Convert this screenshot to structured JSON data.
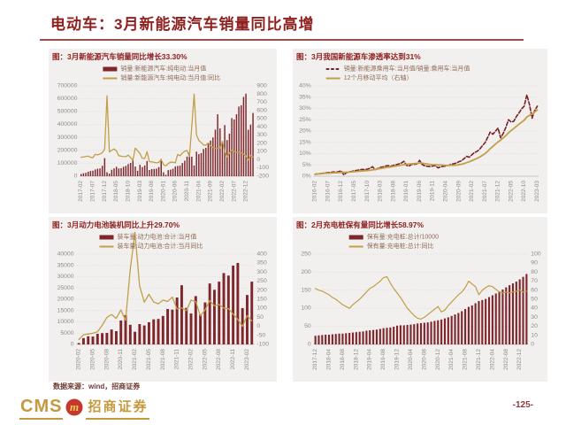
{
  "page": {
    "title": "电动车：3月新能源汽车销量同比高增",
    "source_note": "数据来源：wind，招商证券",
    "page_number": "-125-",
    "logo": {
      "cms": "CMS",
      "brand": "招商证券"
    }
  },
  "colors": {
    "title_red": "#8e2020",
    "bar_maroon": "#7f252c",
    "line_gold": "#c19f48",
    "logo_gold": "#c49a3e",
    "logo_badge_red": "#c5392c",
    "chart_bg": "#f2f0ee",
    "axis_text": "#8c8c8c"
  },
  "chart_data": [
    {
      "type": "bar",
      "title": "图：3月新能源汽车销量同比增长33.30%",
      "tick_every": 5,
      "legend_x_offset": 26,
      "x_ticks": [
        "2017-02",
        "2017-07",
        "2017-12",
        "2018-05",
        "2018-10",
        "2019-03",
        "2019-08",
        "2020-01",
        "2020-06",
        "2020-11",
        "2021-04",
        "2021-09",
        "2022-02",
        "2022-07",
        "2022-12"
      ],
      "left_axis": {
        "min": 0,
        "max": 700000,
        "step": 100000,
        "suffix": ""
      },
      "right_axis": {
        "min": -200,
        "max": 900,
        "step": 100,
        "suffix": ""
      },
      "series": [
        {
          "name": "销量:新能源汽车:纯电动:当月值",
          "kind": "bar",
          "axis": "left",
          "color": "#7f252c",
          "values": [
            17000,
            23000,
            26000,
            35000,
            40000,
            43000,
            52000,
            58000,
            60000,
            81000,
            140000,
            31000,
            20000,
            50000,
            60000,
            73000,
            60000,
            62000,
            73000,
            80000,
            94000,
            103000,
            130000,
            75000,
            42000,
            88000,
            71000,
            83000,
            118000,
            48000,
            55000,
            56000,
            59000,
            71000,
            133000,
            30000,
            11000,
            47000,
            51000,
            58000,
            75000,
            79000,
            82000,
            102000,
            120000,
            152000,
            184000,
            151000,
            83000,
            190000,
            171000,
            179000,
            211000,
            220000,
            250000,
            276000,
            300000,
            361000,
            480000,
            370000,
            270000,
            396000,
            280000,
            330000,
            450000,
            440000,
            480000,
            540000,
            550000,
            615000,
            640000,
            360000,
            400000,
            490000
          ]
        },
        {
          "name": "销量:新能源汽车:纯电动:当月值:同比",
          "kind": "line",
          "axis": "right",
          "color": "#c19f48",
          "width": 1.3,
          "values": [
            30,
            35,
            40,
            45,
            30,
            26,
            67,
            60,
            70,
            87,
            130,
            780,
            95,
            117,
            131,
            109,
            50,
            44,
            40,
            38,
            57,
            27,
            -7,
            142,
            110,
            76,
            18,
            14,
            97,
            -23,
            -25,
            -30,
            -37,
            -31,
            2,
            -60,
            -74,
            -47,
            -28,
            -30,
            -36,
            65,
            49,
            82,
            103,
            114,
            38,
            403,
            800,
            304,
            235,
            209,
            181,
            178,
            205,
            171,
            150,
            138,
            139,
            145,
            225,
            108,
            35,
            84,
            113,
            100,
            92,
            96,
            83,
            70,
            45,
            -3,
            53,
            33
          ]
        }
      ]
    },
    {
      "type": "line",
      "title": "图：3月我国新能源车渗透率达到31%",
      "tick_every": 5,
      "legend_x_offset": 14,
      "x_ticks": [
        "2016-02",
        "2016-07",
        "2016-12",
        "2017-05",
        "2017-10",
        "2018-03",
        "2018-08",
        "2019-01",
        "2019-06",
        "2019-11",
        "2020-04",
        "2020-09",
        "2021-02",
        "2021-07",
        "2021-12",
        "2022-05",
        "2022-10",
        "2023-03"
      ],
      "left_axis": {
        "min": 0,
        "max": 40,
        "step": 5,
        "suffix": "%"
      },
      "series": [
        {
          "name": "销量:新能源乘用车:当月值/销量:乘用车:当月值",
          "kind": "line",
          "axis": "left",
          "color": "#7a1f24",
          "dash": true,
          "width": 1.6,
          "values": [
            0.8,
            1.0,
            1.2,
            1.3,
            1.5,
            1.6,
            1.7,
            1.9,
            1.8,
            2.0,
            2.4,
            0.6,
            1.5,
            1.9,
            2.1,
            2.4,
            2.6,
            2.8,
            3.0,
            2.9,
            3.1,
            3.5,
            4.2,
            2.9,
            3.4,
            3.9,
            4.1,
            4.5,
            4.7,
            4.4,
            4.8,
            5.1,
            5.4,
            5.8,
            6.6,
            4.8,
            4.5,
            5.3,
            5.2,
            5.5,
            7.0,
            5.2,
            4.6,
            4.4,
            4.3,
            4.5,
            4.7,
            3.7,
            4.1,
            4.4,
            4.5,
            4.8,
            5.2,
            5.5,
            5.8,
            6.4,
            6.8,
            7.8,
            8.8,
            8.4,
            9.5,
            10.5,
            11.0,
            12.0,
            13.5,
            14.8,
            17.1,
            19.5,
            18.6,
            19.9,
            21.3,
            17.0,
            19.0,
            21.7,
            25.0,
            24.0,
            24.3,
            26.4,
            28.0,
            29.8,
            31.0,
            36.0,
            31.8,
            25.7,
            29.0,
            31.0
          ]
        },
        {
          "name": "12个月移动平均（右轴）",
          "kind": "line",
          "axis": "left",
          "color": "#c19f48",
          "width": 1.8,
          "values": [
            0.9,
            1.0,
            1.1,
            1.2,
            1.3,
            1.35,
            1.4,
            1.5,
            1.55,
            1.6,
            1.7,
            1.7,
            1.75,
            1.8,
            1.9,
            2.0,
            2.1,
            2.2,
            2.3,
            2.4,
            2.5,
            2.6,
            2.8,
            3.0,
            3.2,
            3.4,
            3.6,
            3.8,
            4.0,
            4.1,
            4.3,
            4.5,
            4.7,
            4.9,
            5.1,
            5.3,
            5.4,
            5.5,
            5.6,
            5.7,
            5.9,
            5.8,
            5.6,
            5.4,
            5.2,
            5.1,
            5.1,
            5.0,
            5.0,
            4.9,
            4.8,
            4.8,
            4.8,
            4.8,
            4.9,
            5.1,
            5.3,
            5.6,
            6.0,
            6.4,
            6.9,
            7.4,
            7.9,
            8.5,
            9.2,
            10.0,
            11.0,
            12.2,
            13.2,
            14.2,
            15.2,
            16.0,
            17.0,
            18.0,
            19.2,
            20.2,
            21.1,
            22.1,
            23.0,
            23.9,
            24.8,
            26.2,
            26.9,
            27.6,
            28.4,
            29.4
          ]
        }
      ]
    },
    {
      "type": "bar",
      "title": "图：3月动力电池装机同比上升29.70%",
      "tick_every": 3,
      "legend_x_offset": 26,
      "x_ticks": [
        "2020-02",
        "2020-05",
        "2020-08",
        "2020-11",
        "2021-02",
        "2021-05",
        "2021-08",
        "2021-11",
        "2022-02",
        "2022-05",
        "2022-08",
        "2022-11",
        "2023-02"
      ],
      "left_axis": {
        "min": 0,
        "max": 40000,
        "step": 5000,
        "suffix": ""
      },
      "right_axis": {
        "min": -100,
        "max": 400,
        "step": 50,
        "suffix": ""
      },
      "series": [
        {
          "name": "装车量:动力电池:合计:当月值",
          "kind": "bar",
          "axis": "left",
          "color": "#7f252c",
          "values": [
            600,
            2800,
            3600,
            3500,
            4700,
            5000,
            5100,
            6600,
            5900,
            10600,
            13000,
            8700,
            5600,
            9000,
            8400,
            9800,
            11100,
            11300,
            12600,
            15700,
            15400,
            20800,
            26200,
            16200,
            13700,
            21400,
            13300,
            18600,
            27000,
            24200,
            27800,
            31600,
            30500,
            34900,
            36100,
            16100,
            21900,
            27800
          ]
        },
        {
          "name": "装车量:动力电池:合计:当月同比",
          "kind": "line",
          "axis": "right",
          "color": "#c19f48",
          "width": 1.3,
          "values": [
            -73,
            -46,
            -42,
            -38,
            -30,
            6,
            49,
            66,
            44,
            91,
            33,
            317,
            520,
            224,
            134,
            178,
            135,
            125,
            145,
            138,
            162,
            96,
            102,
            87,
            145,
            138,
            58,
            91,
            143,
            114,
            121,
            101,
            98,
            68,
            38,
            0,
            60,
            30
          ]
        }
      ]
    },
    {
      "type": "bar",
      "title": "图：2月充电桩保有量同比增长58.97%",
      "tick_every": 4,
      "legend_x_offset": 40,
      "x_ticks": [
        "2017-12",
        "2018-04",
        "2018-08",
        "2018-12",
        "2019-04",
        "2019-08",
        "2019-12",
        "2020-04",
        "2020-08",
        "2020-12",
        "2021-04",
        "2021-08",
        "2021-12",
        "2022-04",
        "2022-08",
        "2022-12"
      ],
      "left_axis": {
        "min": 0,
        "max": 250,
        "step": 50,
        "suffix": ""
      },
      "right_axis": {
        "min": 0,
        "max": 100,
        "step": 10,
        "suffix": ""
      },
      "series": [
        {
          "name": "保有量:充电桩:总计/10000",
          "kind": "bar",
          "axis": "left",
          "color": "#7f252c",
          "values": [
            24,
            25,
            26,
            27,
            27,
            28,
            29,
            30,
            30,
            31,
            32,
            33,
            34,
            35,
            36,
            38,
            39,
            40,
            41,
            43,
            45,
            46,
            47,
            49,
            52,
            53,
            53,
            54,
            55,
            56,
            58,
            59,
            60,
            61,
            63,
            65,
            67,
            69,
            72,
            75,
            79,
            83,
            87,
            92,
            98,
            104,
            108,
            114,
            120,
            123,
            126,
            131,
            136,
            141,
            147,
            152,
            158,
            164,
            169,
            174,
            180,
            187,
            195
          ]
        },
        {
          "name": "保有量:充电桩:总计:同比",
          "kind": "line",
          "axis": "right",
          "color": "#c19f48",
          "width": 1.2,
          "values": [
            62,
            60,
            59,
            57,
            55,
            52,
            50,
            47,
            44,
            42,
            40,
            44,
            47,
            50,
            54,
            58,
            62,
            64,
            67,
            70,
            74,
            75,
            68,
            62,
            57,
            52,
            46,
            40,
            36,
            32,
            29,
            28,
            30,
            33,
            36,
            39,
            42,
            36,
            38,
            43,
            47,
            51,
            55,
            58,
            63,
            70,
            67,
            64,
            55,
            60,
            63,
            65,
            64,
            61,
            58,
            57,
            58,
            57,
            58,
            59,
            60,
            58,
            59
          ]
        }
      ]
    }
  ]
}
